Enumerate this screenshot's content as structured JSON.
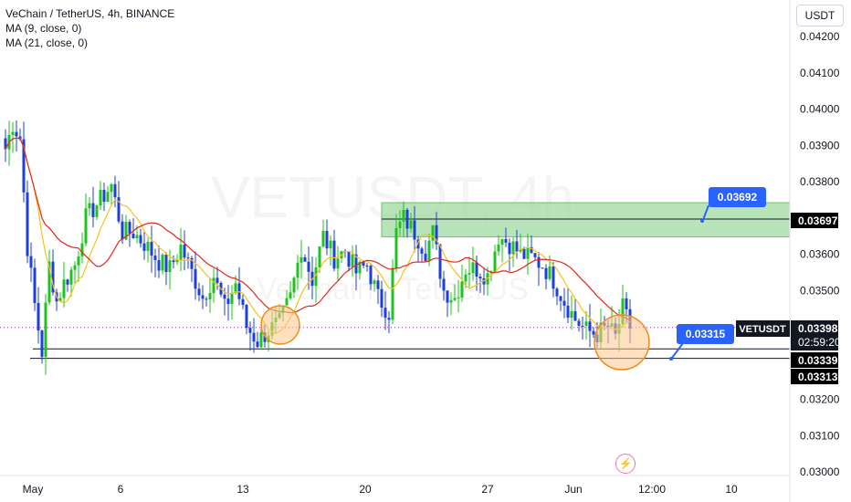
{
  "header": {
    "title": "VeChain / TetherUS, 4h, BINANCE",
    "ma1": "MA (9, close, 0)",
    "ma2": "MA (21, close, 0)"
  },
  "watermark": {
    "main": "VETUSDT, 4h",
    "sub": "VeChain / TetherUS"
  },
  "quote_currency": "USDT",
  "colors": {
    "up": "#1fc21f",
    "down": "#1f3fd6",
    "ma9": "#f7c21a",
    "ma21": "#e0281b",
    "zone_fill": "#9bd99b",
    "circle_fill": "#ffc98a",
    "callout": "#2962ff"
  },
  "chart_data": {
    "type": "candlestick",
    "title": "VeChain / TetherUS, 4h, BINANCE",
    "ylim": [
      0.03,
      0.0426
    ],
    "y_ticks": [
      "0.04200",
      "0.04100",
      "0.04000",
      "0.03900",
      "0.03800",
      "0.03600",
      "0.03500",
      "0.03200",
      "0.03100",
      "0.03000"
    ],
    "x_ticks": [
      "May",
      "6",
      "13",
      "20",
      "27",
      "Jun",
      "12:00",
      "10"
    ],
    "anchors": [
      [
        0,
        0.0389
      ],
      [
        2,
        0.0396
      ],
      [
        4,
        0.0392
      ],
      [
        6,
        0.0362
      ],
      [
        8,
        0.0346
      ],
      [
        10,
        0.0333
      ],
      [
        12,
        0.0357
      ],
      [
        14,
        0.0347
      ],
      [
        16,
        0.0352
      ],
      [
        19,
        0.0357
      ],
      [
        22,
        0.037
      ],
      [
        26,
        0.0375
      ],
      [
        29,
        0.0379
      ],
      [
        32,
        0.0366
      ],
      [
        35,
        0.0366
      ],
      [
        38,
        0.0363
      ],
      [
        42,
        0.0358
      ],
      [
        45,
        0.0356
      ],
      [
        48,
        0.0362
      ],
      [
        51,
        0.0355
      ],
      [
        54,
        0.0348
      ],
      [
        57,
        0.0354
      ],
      [
        60,
        0.0345
      ],
      [
        63,
        0.0352
      ],
      [
        66,
        0.034
      ],
      [
        69,
        0.0336
      ],
      [
        72,
        0.0339
      ],
      [
        75,
        0.0341
      ],
      [
        78,
        0.0348
      ],
      [
        81,
        0.0362
      ],
      [
        84,
        0.0353
      ],
      [
        87,
        0.0365
      ],
      [
        90,
        0.0359
      ],
      [
        93,
        0.0361
      ],
      [
        96,
        0.0355
      ],
      [
        99,
        0.0357
      ],
      [
        102,
        0.0348
      ],
      [
        105,
        0.0344
      ],
      [
        107,
        0.0366
      ],
      [
        109,
        0.037
      ],
      [
        112,
        0.0366
      ],
      [
        115,
        0.0361
      ],
      [
        117,
        0.0366
      ],
      [
        120,
        0.035
      ],
      [
        123,
        0.0348
      ],
      [
        126,
        0.0356
      ],
      [
        129,
        0.0356
      ],
      [
        132,
        0.0354
      ],
      [
        135,
        0.0365
      ],
      [
        138,
        0.0363
      ],
      [
        141,
        0.036
      ],
      [
        144,
        0.0359
      ],
      [
        147,
        0.0357
      ],
      [
        150,
        0.0353
      ],
      [
        153,
        0.0347
      ],
      [
        156,
        0.0342
      ],
      [
        159,
        0.0339
      ],
      [
        162,
        0.0338
      ],
      [
        165,
        0.034
      ],
      [
        167,
        0.0337
      ],
      [
        169,
        0.0345
      ],
      [
        171,
        0.034
      ]
    ],
    "series": [
      {
        "name": "MA (9, close, 0)"
      },
      {
        "name": "MA (21, close, 0)"
      }
    ],
    "resistance_zone": {
      "low": 0.03648,
      "high": 0.03742
    },
    "levels": [
      0.03697,
      0.03339,
      0.03313
    ],
    "current_price_line": 0.03398,
    "callouts": [
      "0.03692",
      "0.03315"
    ],
    "price_labels": {
      "symbol": "VETUSDT",
      "last": "0.03398",
      "countdown": "02:59:20",
      "level_3697": "0.03697",
      "level_3339": "0.03339",
      "level_3313": "0.03313"
    }
  }
}
